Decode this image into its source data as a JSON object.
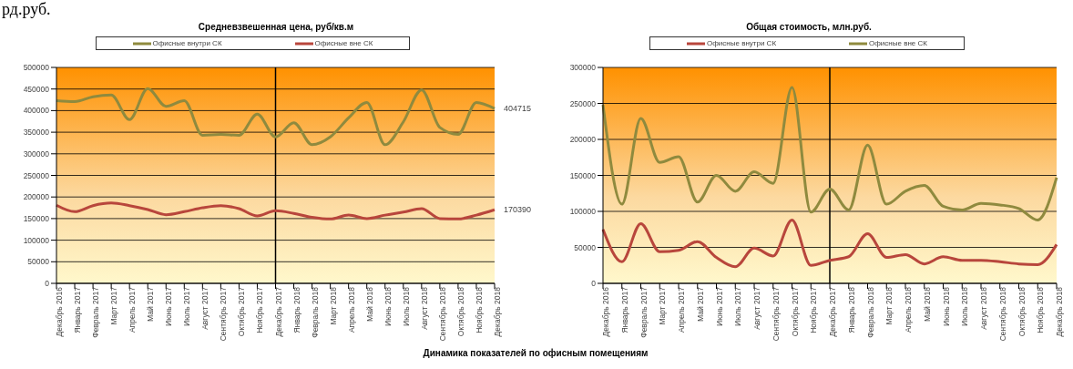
{
  "chart_data": [
    {
      "type": "line",
      "title": "Средневзвешенная цена, руб/кв.м",
      "annotations": [
        "рд.руб.",
        "Динамика показателей по офисным помещениям"
      ],
      "categories": [
        "Декабрь 2016",
        "Январь 2017",
        "Февраль 2017",
        "Март 2017",
        "Апрель 2017",
        "Май 2017",
        "Июнь 2017",
        "Июль 2017",
        "Август 2017",
        "Сентябрь 2017",
        "Октябрь 2017",
        "Ноябрь 2017",
        "Декабрь 2017",
        "Январь 2018",
        "Февраль 2018",
        "Март 2018",
        "Апрель 2018",
        "Май 2018",
        "Июнь 2018",
        "Июль 2018",
        "Август 2018",
        "Сентябрь 2018",
        "Октябрь 2018",
        "Ноябрь 2018",
        "Декабрь 2018"
      ],
      "series": [
        {
          "name": "Офисные внутри СК",
          "color": "#8f8a3e",
          "values": [
            423000,
            421000,
            432000,
            436000,
            379000,
            451000,
            410000,
            423000,
            343000,
            345000,
            343000,
            392000,
            339000,
            372000,
            321000,
            339000,
            383000,
            419000,
            321000,
            374000,
            448000,
            361000,
            345000,
            419000,
            404715
          ],
          "value_labels": [
            null,
            null,
            null,
            null,
            null,
            null,
            null,
            null,
            null,
            null,
            null,
            null,
            null,
            null,
            null,
            null,
            null,
            null,
            null,
            null,
            null,
            null,
            null,
            null,
            "404715"
          ]
        },
        {
          "name": "Офисные вне СК",
          "color": "#b8463c",
          "values": [
            181000,
            166000,
            180000,
            186000,
            180000,
            171000,
            159000,
            166000,
            175000,
            180000,
            173000,
            156000,
            168000,
            162000,
            153000,
            149000,
            158000,
            150000,
            158000,
            165000,
            173000,
            150000,
            149000,
            158000,
            170390
          ],
          "value_labels": [
            null,
            null,
            null,
            null,
            null,
            null,
            null,
            null,
            null,
            null,
            null,
            null,
            null,
            null,
            null,
            null,
            null,
            null,
            null,
            null,
            null,
            null,
            null,
            null,
            "170390"
          ]
        }
      ],
      "ylim": [
        0,
        500000
      ],
      "yticks": [
        0,
        50000,
        100000,
        150000,
        200000,
        250000,
        300000,
        350000,
        400000,
        450000,
        500000
      ],
      "grid": "y",
      "legend": "top",
      "marker": "none",
      "line_style": "solid",
      "ref_lines": [
        {
          "axis": "x",
          "value": "Декабрь 2017",
          "color": "#000000"
        }
      ]
    },
    {
      "type": "line",
      "title": "Общая стоимость, млн.руб.",
      "categories": [
        "Декабрь 2016",
        "Январь 2017",
        "Февраль 2017",
        "Март 2017",
        "Апрель 2017",
        "Май 2017",
        "Июнь 2017",
        "Июль 2017",
        "Август 2017",
        "Сентябрь 2017",
        "Октябрь 2017",
        "Ноябрь 2017",
        "Декабрь 2017",
        "Январь 2018",
        "Февраль 2018",
        "Март 2018",
        "Апрель 2018",
        "Май 2018",
        "Июнь 2018",
        "Июль 2018",
        "Август 2018",
        "Сентябрь 2018",
        "Октябрь 2018",
        "Ноябрь 2018",
        "Декабрь 2018"
      ],
      "series": [
        {
          "name": "Офисные внутри СК",
          "color": "#b8463c",
          "values": [
            75000,
            30000,
            83000,
            44000,
            46000,
            58000,
            36000,
            23000,
            49000,
            38000,
            88000,
            25000,
            32000,
            37000,
            69000,
            36000,
            40000,
            27000,
            37000,
            32000,
            32000,
            30000,
            27000,
            26000,
            54000
          ]
        },
        {
          "name": "Офисные вне СК",
          "color": "#8f8a3e",
          "values": [
            248000,
            110000,
            229000,
            168000,
            176000,
            113000,
            150000,
            128000,
            155000,
            139000,
            272000,
            99000,
            131000,
            102000,
            192000,
            110000,
            128000,
            136000,
            107000,
            102000,
            111000,
            109000,
            104000,
            88000,
            147000
          ]
        }
      ],
      "ylim": [
        0,
        300000
      ],
      "yticks": [
        0,
        50000,
        100000,
        150000,
        200000,
        250000,
        300000
      ],
      "grid": "y",
      "legend": "top",
      "marker": "none",
      "line_style": "solid",
      "ref_lines": [
        {
          "axis": "x",
          "value": "Декабрь 2017",
          "color": "#000000"
        }
      ]
    }
  ]
}
